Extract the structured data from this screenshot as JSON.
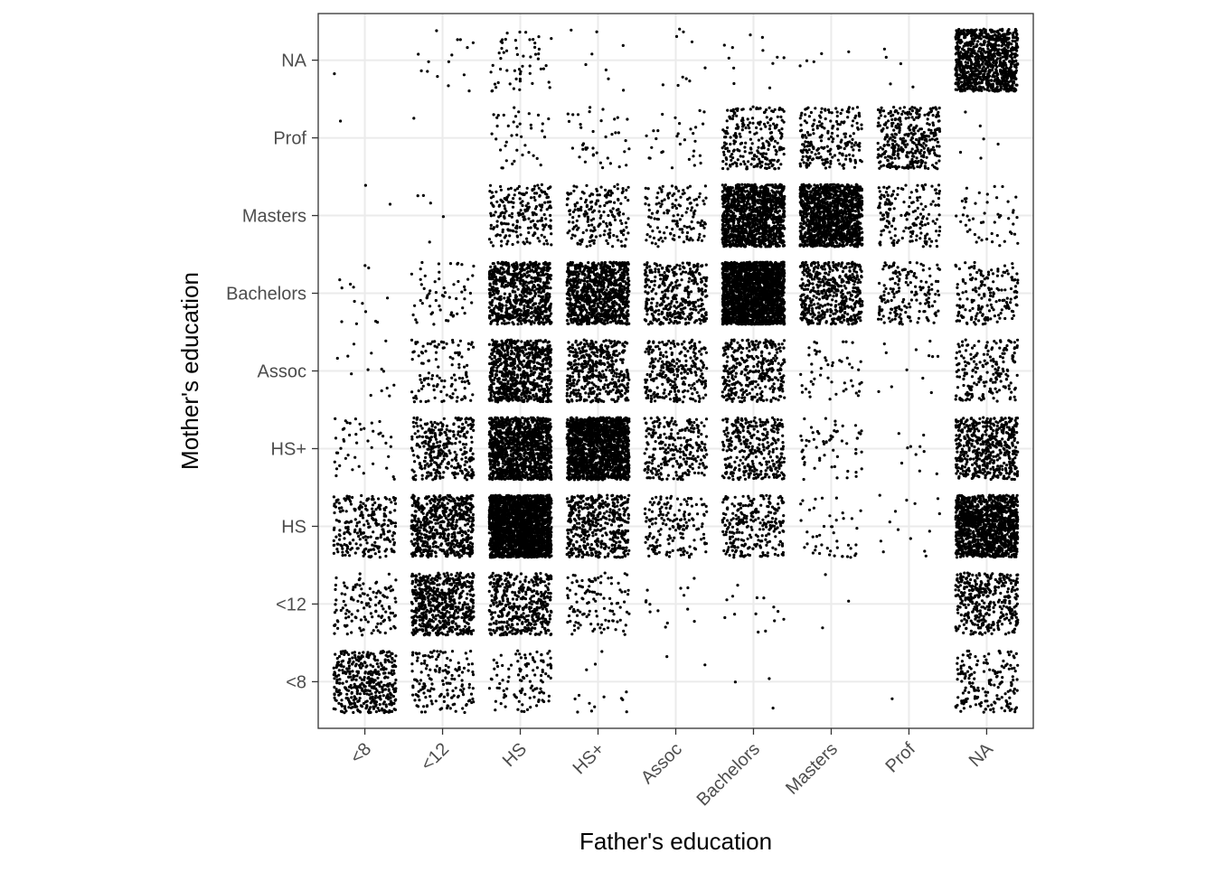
{
  "chart_data": {
    "type": "scatter",
    "subtype": "jittered categorical scatter",
    "title": "",
    "xlabel": "Father's education",
    "ylabel": "Mother's education",
    "x_categories": [
      "<8",
      "<12",
      "HS",
      "HS+",
      "Assoc",
      "Bachelors",
      "Masters",
      "Prof",
      "NA"
    ],
    "y_categories": [
      "<8",
      "<12",
      "HS",
      "HS+",
      "Assoc",
      "Bachelors",
      "Masters",
      "Prof",
      "NA"
    ],
    "jitter": 0.4,
    "grid": true,
    "legend": "none",
    "point_color": "#000000",
    "counts_rows_by_mother_from_lowest": [
      [
        420,
        160,
        110,
        14,
        2,
        3,
        0,
        1,
        170
      ],
      [
        130,
        600,
        430,
        110,
        14,
        14,
        3,
        0,
        380
      ],
      [
        250,
        600,
        2300,
        480,
        170,
        260,
        45,
        14,
        1300
      ],
      [
        45,
        320,
        1300,
        1700,
        270,
        330,
        60,
        10,
        520
      ],
      [
        14,
        120,
        750,
        460,
        300,
        350,
        50,
        12,
        200
      ],
      [
        14,
        60,
        750,
        1000,
        380,
        2200,
        500,
        170,
        180
      ],
      [
        2,
        5,
        220,
        190,
        140,
        1300,
        1400,
        170,
        50
      ],
      [
        1,
        1,
        40,
        40,
        30,
        240,
        220,
        360,
        6
      ],
      [
        1,
        15,
        55,
        8,
        10,
        12,
        5,
        5,
        1000
      ]
    ]
  }
}
